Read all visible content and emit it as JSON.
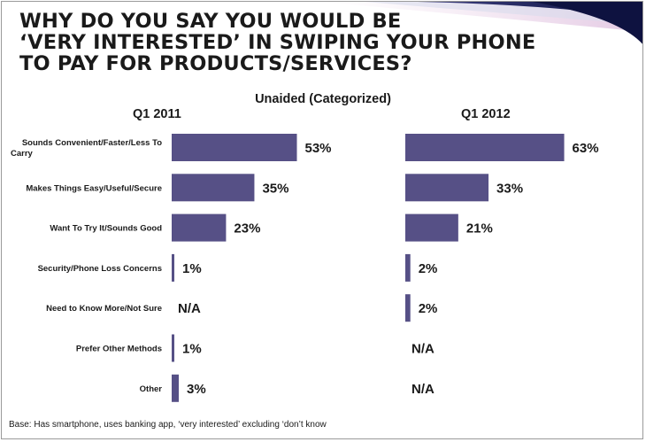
{
  "title_lines": [
    "WHY DO YOU SAY YOU WOULD BE",
    "‘VERY INTERESTED’ IN SWIPING YOUR PHONE",
    "TO PAY FOR PRODUCTS/SERVICES?"
  ],
  "subtitle": "Unaided (Categorized)",
  "footnote": "Base: Has smartphone, uses banking app, ‘very interested’ excluding ‘don’t know",
  "colors": {
    "bar": "#565086",
    "text": "#1a1a1a",
    "border": "#9a9a9a"
  },
  "chart_data": {
    "type": "bar",
    "orientation": "horizontal",
    "categories": [
      "Sounds Convenient/Faster/Less To Carry",
      "Makes Things Easy/Useful/Secure",
      "Want To Try It/Sounds Good",
      "Security/Phone Loss Concerns",
      "Need to Know More/Not Sure",
      "Prefer Other Methods",
      "Other"
    ],
    "category_label_lines": [
      [
        "Sounds Convenient/Faster/Less To",
        "Carry"
      ],
      [
        "Makes Things Easy/Useful/Secure"
      ],
      [
        "Want To Try It/Sounds Good"
      ],
      [
        "Security/Phone Loss Concerns"
      ],
      [
        "Need to Know More/Not Sure"
      ],
      [
        "Prefer Other Methods"
      ],
      [
        "Other"
      ]
    ],
    "series": [
      {
        "name": "Q1 2011",
        "values": [
          53,
          35,
          23,
          1,
          null,
          1,
          3
        ],
        "labels": [
          "53%",
          "35%",
          "23%",
          "1%",
          "N/A",
          "1%",
          "3%"
        ]
      },
      {
        "name": "Q1 2012",
        "values": [
          63,
          33,
          21,
          2,
          2,
          null,
          null
        ],
        "labels": [
          "63%",
          "33%",
          "21%",
          "2%",
          "2%",
          "N/A",
          "N/A"
        ]
      }
    ],
    "value_unit": "%",
    "grid": false,
    "legend": "none"
  }
}
